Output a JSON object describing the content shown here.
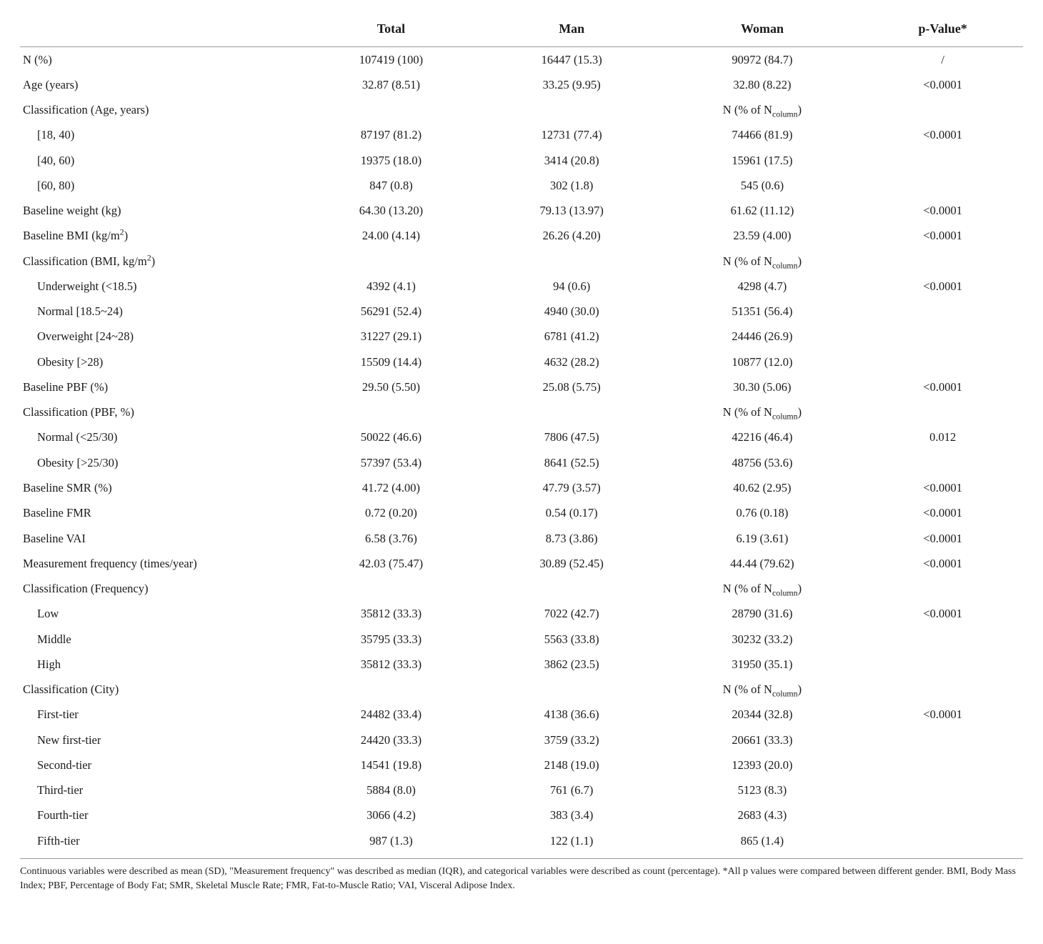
{
  "headers": {
    "col0": "",
    "col1": "Total",
    "col2": "Man",
    "col3": "Woman",
    "col4": "p-Value*"
  },
  "subheader_note": "N (% of N",
  "subheader_note_sub": "column",
  "subheader_note_tail": ")",
  "rows": [
    {
      "label": "N (%)",
      "total": "107419 (100)",
      "man": "16447 (15.3)",
      "woman": "90972 (84.7)",
      "p": "/"
    },
    {
      "label": "Age (years)",
      "total": "32.87 (8.51)",
      "man": "33.25 (9.95)",
      "woman": "32.80 (8.22)",
      "p": "<0.0001"
    },
    {
      "label_html": "Classification (Age, years)",
      "total": "",
      "man": "",
      "woman_note": true,
      "p": ""
    },
    {
      "label": "[18, 40)",
      "indent": true,
      "total": "87197 (81.2)",
      "man": "12731 (77.4)",
      "woman": "74466 (81.9)",
      "p": "<0.0001"
    },
    {
      "label": "[40, 60)",
      "indent": true,
      "total": "19375 (18.0)",
      "man": "3414 (20.8)",
      "woman": "15961 (17.5)",
      "p": ""
    },
    {
      "label": "[60, 80)",
      "indent": true,
      "total": "847 (0.8)",
      "man": "302 (1.8)",
      "woman": "545 (0.6)",
      "p": ""
    },
    {
      "label": "Baseline weight (kg)",
      "total": "64.30 (13.20)",
      "man": "79.13 (13.97)",
      "woman": "61.62 (11.12)",
      "p": "<0.0001"
    },
    {
      "label_html": "Baseline BMI (kg/m<sup>2</sup>)",
      "total": "24.00 (4.14)",
      "man": "26.26 (4.20)",
      "woman": "23.59 (4.00)",
      "p": "<0.0001"
    },
    {
      "label_html": "Classification (BMI, kg/m<sup>2</sup>)",
      "total": "",
      "man": "",
      "woman_note": true,
      "p": ""
    },
    {
      "label": "Underweight (<18.5)",
      "indent": true,
      "total": "4392 (4.1)",
      "man": "94 (0.6)",
      "woman": "4298 (4.7)",
      "p": "<0.0001"
    },
    {
      "label": "Normal [18.5~24)",
      "indent": true,
      "total": "56291 (52.4)",
      "man": "4940 (30.0)",
      "woman": "51351 (56.4)",
      "p": ""
    },
    {
      "label": "Overweight [24~28)",
      "indent": true,
      "total": "31227 (29.1)",
      "man": "6781 (41.2)",
      "woman": "24446 (26.9)",
      "p": ""
    },
    {
      "label": "Obesity [>28)",
      "indent": true,
      "total": "15509 (14.4)",
      "man": "4632 (28.2)",
      "woman": "10877 (12.0)",
      "p": ""
    },
    {
      "label": "Baseline PBF (%)",
      "total": "29.50 (5.50)",
      "man": "25.08 (5.75)",
      "woman": "30.30 (5.06)",
      "p": "<0.0001"
    },
    {
      "label": "Classification (PBF, %)",
      "total": "",
      "man": "",
      "woman_note": true,
      "p": ""
    },
    {
      "label": "Normal (<25/30)",
      "indent": true,
      "total": "50022 (46.6)",
      "man": "7806 (47.5)",
      "woman": "42216 (46.4)",
      "p": "0.012"
    },
    {
      "label": "Obesity [>25/30)",
      "indent": true,
      "total": "57397 (53.4)",
      "man": "8641 (52.5)",
      "woman": "48756 (53.6)",
      "p": ""
    },
    {
      "label": "Baseline SMR (%)",
      "total": "41.72 (4.00)",
      "man": "47.79 (3.57)",
      "woman": "40.62 (2.95)",
      "p": "<0.0001"
    },
    {
      "label": "Baseline FMR",
      "total": "0.72 (0.20)",
      "man": "0.54 (0.17)",
      "woman": "0.76 (0.18)",
      "p": "<0.0001"
    },
    {
      "label": "Baseline VAI",
      "total": "6.58 (3.76)",
      "man": "8.73 (3.86)",
      "woman": "6.19 (3.61)",
      "p": "<0.0001"
    },
    {
      "label": "Measurement frequency (times/year)",
      "total": "42.03 (75.47)",
      "man": "30.89 (52.45)",
      "woman": "44.44 (79.62)",
      "p": "<0.0001"
    },
    {
      "label": "Classification (Frequency)",
      "total": "",
      "man": "",
      "woman_note": true,
      "p": ""
    },
    {
      "label": "Low",
      "indent": true,
      "total": "35812 (33.3)",
      "man": "7022 (42.7)",
      "woman": "28790 (31.6)",
      "p": "<0.0001"
    },
    {
      "label": "Middle",
      "indent": true,
      "total": "35795 (33.3)",
      "man": "5563 (33.8)",
      "woman": "30232 (33.2)",
      "p": ""
    },
    {
      "label": "High",
      "indent": true,
      "total": "35812 (33.3)",
      "man": "3862 (23.5)",
      "woman": "31950 (35.1)",
      "p": ""
    },
    {
      "label": "Classification (City)",
      "total": "",
      "man": "",
      "woman_note": true,
      "p": ""
    },
    {
      "label": "First-tier",
      "indent": true,
      "total": "24482 (33.4)",
      "man": "4138 (36.6)",
      "woman": "20344 (32.8)",
      "p": "<0.0001"
    },
    {
      "label": "New first-tier",
      "indent": true,
      "total": "24420 (33.3)",
      "man": "3759 (33.2)",
      "woman": "20661 (33.3)",
      "p": ""
    },
    {
      "label": "Second-tier",
      "indent": true,
      "total": "14541 (19.8)",
      "man": "2148 (19.0)",
      "woman": "12393 (20.0)",
      "p": ""
    },
    {
      "label": "Third-tier",
      "indent": true,
      "total": "5884 (8.0)",
      "man": "761 (6.7)",
      "woman": "5123 (8.3)",
      "p": ""
    },
    {
      "label": "Fourth-tier",
      "indent": true,
      "total": "3066 (4.2)",
      "man": "383 (3.4)",
      "woman": "2683 (4.3)",
      "p": ""
    },
    {
      "label": "Fifth-tier",
      "indent": true,
      "total": "987 (1.3)",
      "man": "122 (1.1)",
      "woman": "865 (1.4)",
      "p": ""
    }
  ],
  "footnote": "Continuous variables were described as mean (SD), \"Measurement frequency\" was described as median (IQR), and categorical variables were described as count (percentage). *All p values were compared between different gender. BMI, Body Mass Index; PBF, Percentage of Body Fat; SMR, Skeletal Muscle Rate; FMR, Fat-to-Muscle Ratio; VAI, Visceral Adipose Index."
}
